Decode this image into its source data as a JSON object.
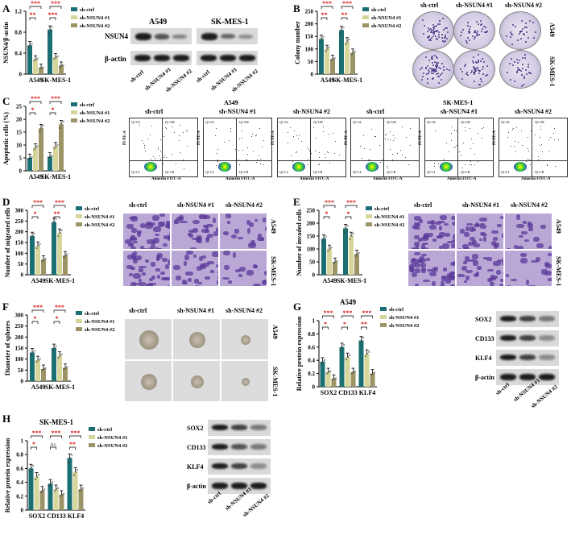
{
  "figure": {
    "panels": [
      "A",
      "B",
      "C",
      "D",
      "E",
      "F",
      "G",
      "H"
    ],
    "legend": [
      "sh-ctrl",
      "sh-NSUN4 #1",
      "sh-NSUN4 #2"
    ],
    "legend_colors": [
      "#1b6f73",
      "#d6d69a",
      "#9c9466"
    ],
    "cells": [
      "A549",
      "SK-MES-1"
    ],
    "col_titles": [
      "sh-ctrl",
      "sh-NSUN4 #1",
      "sh-NSUN4 #2"
    ],
    "blot_labels_a": [
      "NSUN4",
      "β-actin"
    ],
    "blot_labels_g": [
      "SOX2",
      "CD133",
      "KLF4",
      "β-actin"
    ],
    "flow_quadrants": [
      "Q1-UL",
      "Q1-UR",
      "Q1-LL",
      "Q1-LR"
    ],
    "flow_axes": [
      "Annexin FITC-A",
      "PI PE-A"
    ],
    "sig3": "***",
    "sig2": "**",
    "sig1": "*",
    "ns": "ns"
  },
  "chart_data": [
    {
      "panel": "A",
      "type": "bar",
      "ylabel": "NSUN4/β-actin",
      "categories": [
        "A549",
        "SK-MES-1"
      ],
      "ylim": [
        0,
        1.2
      ],
      "yticks": [
        0,
        0.4,
        0.8,
        1.2
      ],
      "series": [
        {
          "name": "sh-ctrl",
          "values": [
            0.55,
            0.85
          ]
        },
        {
          "name": "sh-NSUN4 #1",
          "values": [
            0.28,
            0.32
          ]
        },
        {
          "name": "sh-NSUN4 #2",
          "values": [
            0.12,
            0.16
          ]
        }
      ],
      "sig": [
        [
          "***",
          "**"
        ],
        [
          "***",
          "***"
        ]
      ]
    },
    {
      "panel": "B",
      "type": "bar",
      "ylabel": "Colony number",
      "categories": [
        "A549",
        "SK-MES-1"
      ],
      "ylim": [
        0,
        250
      ],
      "yticks": [
        0,
        50,
        100,
        150,
        200,
        250
      ],
      "series": [
        {
          "name": "sh-ctrl",
          "values": [
            140,
            175
          ]
        },
        {
          "name": "sh-NSUN4 #1",
          "values": [
            100,
            130
          ]
        },
        {
          "name": "sh-NSUN4 #2",
          "values": [
            60,
            85
          ]
        }
      ],
      "sig": [
        [
          "***",
          "**"
        ],
        [
          "***",
          "**"
        ]
      ]
    },
    {
      "panel": "C",
      "type": "bar",
      "ylabel": "Apoptotic cells (%)",
      "categories": [
        "A549",
        "SK-MES-1"
      ],
      "ylim": [
        0,
        25
      ],
      "yticks": [
        0,
        5,
        10,
        15,
        20,
        25
      ],
      "series": [
        {
          "name": "sh-ctrl",
          "values": [
            5,
            5.5
          ]
        },
        {
          "name": "sh-NSUN4 #1",
          "values": [
            9,
            9.5
          ]
        },
        {
          "name": "sh-NSUN4 #2",
          "values": [
            16.5,
            18
          ]
        }
      ],
      "sig": [
        [
          "***",
          "*"
        ],
        [
          "***",
          "*"
        ]
      ]
    },
    {
      "panel": "D",
      "type": "bar",
      "ylabel": "Number of migrated cells",
      "categories": [
        "A549",
        "SK-MES-1"
      ],
      "ylim": [
        0,
        300
      ],
      "yticks": [
        0,
        50,
        100,
        150,
        200,
        250,
        300
      ],
      "series": [
        {
          "name": "sh-ctrl",
          "values": [
            180,
            245
          ]
        },
        {
          "name": "sh-NSUN4 #1",
          "values": [
            135,
            195
          ]
        },
        {
          "name": "sh-NSUN4 #2",
          "values": [
            70,
            90
          ]
        }
      ],
      "sig": [
        [
          "***",
          "*"
        ],
        [
          "***",
          "**"
        ]
      ]
    },
    {
      "panel": "E",
      "type": "bar",
      "ylabel": "Number of invaded cells",
      "categories": [
        "A549",
        "SK-MES-1"
      ],
      "ylim": [
        0,
        250
      ],
      "yticks": [
        0,
        50,
        100,
        150,
        200,
        250
      ],
      "series": [
        {
          "name": "sh-ctrl",
          "values": [
            140,
            180
          ]
        },
        {
          "name": "sh-NSUN4 #1",
          "values": [
            100,
            150
          ]
        },
        {
          "name": "sh-NSUN4 #2",
          "values": [
            50,
            80
          ]
        }
      ],
      "sig": [
        [
          "***",
          "*"
        ],
        [
          "***",
          "*"
        ]
      ]
    },
    {
      "panel": "F",
      "type": "bar",
      "ylabel": "Diameter of spheres",
      "categories": [
        "A549",
        "SK-MES-1"
      ],
      "ylim": [
        0,
        300
      ],
      "yticks": [
        0,
        50,
        100,
        150,
        200,
        250,
        300
      ],
      "series": [
        {
          "name": "sh-ctrl",
          "values": [
            130,
            150
          ]
        },
        {
          "name": "sh-NSUN4 #1",
          "values": [
            95,
            115
          ]
        },
        {
          "name": "sh-NSUN4 #2",
          "values": [
            55,
            60
          ]
        }
      ],
      "sig": [
        [
          "***",
          "*"
        ],
        [
          "***",
          "*"
        ]
      ]
    },
    {
      "panel": "G",
      "type": "bar",
      "title": "A549",
      "ylabel": "Relative protein expression",
      "categories": [
        "SOX2",
        "CD133",
        "KLF4"
      ],
      "ylim": [
        0,
        1.0
      ],
      "yticks": [
        0,
        0.2,
        0.4,
        0.6,
        0.8,
        1.0
      ],
      "series": [
        {
          "name": "sh-ctrl",
          "values": [
            0.38,
            0.6,
            0.7
          ]
        },
        {
          "name": "sh-NSUN4 #1",
          "values": [
            0.22,
            0.45,
            0.5
          ]
        },
        {
          "name": "sh-NSUN4 #2",
          "values": [
            0.12,
            0.22,
            0.2
          ]
        }
      ],
      "sig": [
        [
          "***",
          "*"
        ],
        [
          "***",
          "*"
        ],
        [
          "***",
          "**"
        ]
      ]
    },
    {
      "panel": "H",
      "type": "bar",
      "title": "SK-MES-1",
      "ylabel": "Relative protein expression",
      "categories": [
        "SOX2",
        "CD133",
        "KLF4"
      ],
      "ylim": [
        0,
        1.0
      ],
      "yticks": [
        0,
        0.2,
        0.4,
        0.6,
        0.8,
        1.0
      ],
      "series": [
        {
          "name": "sh-ctrl",
          "values": [
            0.6,
            0.38,
            0.75
          ]
        },
        {
          "name": "sh-NSUN4 #1",
          "values": [
            0.48,
            0.3,
            0.55
          ]
        },
        {
          "name": "sh-NSUN4 #2",
          "values": [
            0.28,
            0.22,
            0.3
          ]
        }
      ],
      "sig": [
        [
          "***",
          "*"
        ],
        [
          "***",
          "ns"
        ],
        [
          "***",
          "**"
        ]
      ]
    }
  ]
}
